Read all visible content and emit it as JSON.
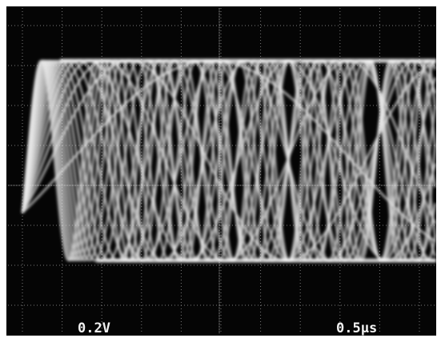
{
  "screen": {
    "volts_per_div": "0.2V",
    "time_per_div": "0.5μs"
  }
}
